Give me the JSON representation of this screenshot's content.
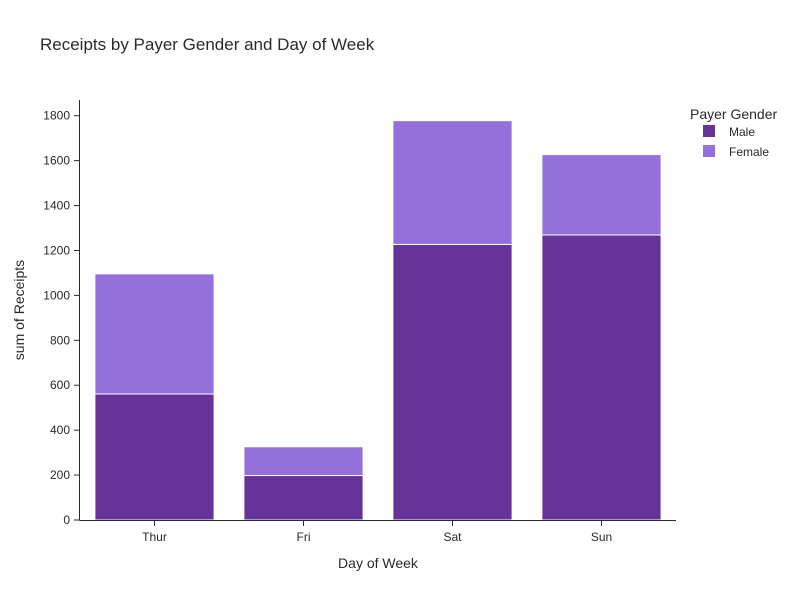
{
  "chart_data": {
    "type": "bar",
    "stacked": true,
    "title": "Receipts by Payer Gender and Day of Week",
    "xlabel": "Day of Week",
    "ylabel": "sum of Receipts",
    "categories": [
      "Thur",
      "Fri",
      "Sat",
      "Sun"
    ],
    "series": [
      {
        "name": "Male",
        "color": "#663399",
        "values": [
          561,
          198,
          1227,
          1269
        ]
      },
      {
        "name": "Female",
        "color": "#9370db",
        "values": [
          535,
          128,
          551,
          358
        ]
      }
    ],
    "ylim": [
      0,
      1870
    ],
    "yticks": [
      0,
      200,
      400,
      600,
      800,
      1000,
      1200,
      1400,
      1600,
      1800
    ],
    "grid": false,
    "legend": {
      "title": "Payer Gender",
      "position": "top-right"
    }
  }
}
